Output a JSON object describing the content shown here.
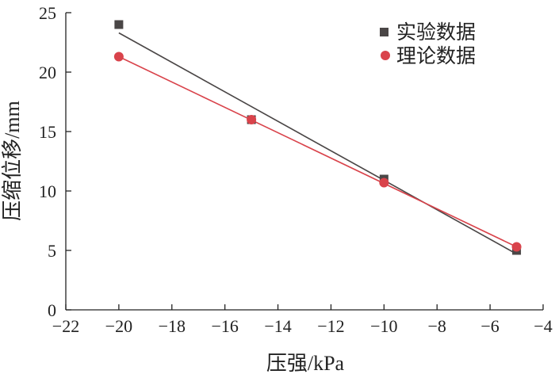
{
  "chart_data": {
    "type": "scatter",
    "xlabel": "压强/kPa",
    "ylabel": "压缩位移/mm",
    "xlim": [
      -22,
      -4
    ],
    "ylim": [
      0,
      25
    ],
    "xticks": [
      -22,
      -20,
      -18,
      -16,
      -14,
      -12,
      -10,
      -8,
      -6,
      -4
    ],
    "yticks": [
      0,
      5,
      10,
      15,
      20,
      25
    ],
    "x_tick_labels": [
      "−22",
      "−20",
      "−18",
      "−16",
      "−14",
      "−12",
      "−10",
      "−8",
      "−6",
      "−4"
    ],
    "y_tick_labels": [
      "0",
      "5",
      "10",
      "15",
      "20",
      "25"
    ],
    "legend_position": "top-right",
    "grid": false,
    "series": [
      {
        "name": "实验数据",
        "marker": "square",
        "color": "#4a4646",
        "x": [
          -20,
          -15,
          -10,
          -5
        ],
        "y": [
          24.0,
          16.0,
          11.0,
          5.0
        ],
        "trend_line": {
          "x": [
            -20,
            -5
          ],
          "y": [
            23.3,
            4.7
          ]
        }
      },
      {
        "name": "理论数据",
        "marker": "circle",
        "color": "#d9434b",
        "x": [
          -20,
          -15,
          -10,
          -5
        ],
        "y": [
          21.3,
          16.0,
          10.7,
          5.3
        ],
        "trend_line": {
          "x": [
            -20,
            -5
          ],
          "y": [
            21.3,
            5.3
          ]
        }
      }
    ]
  }
}
